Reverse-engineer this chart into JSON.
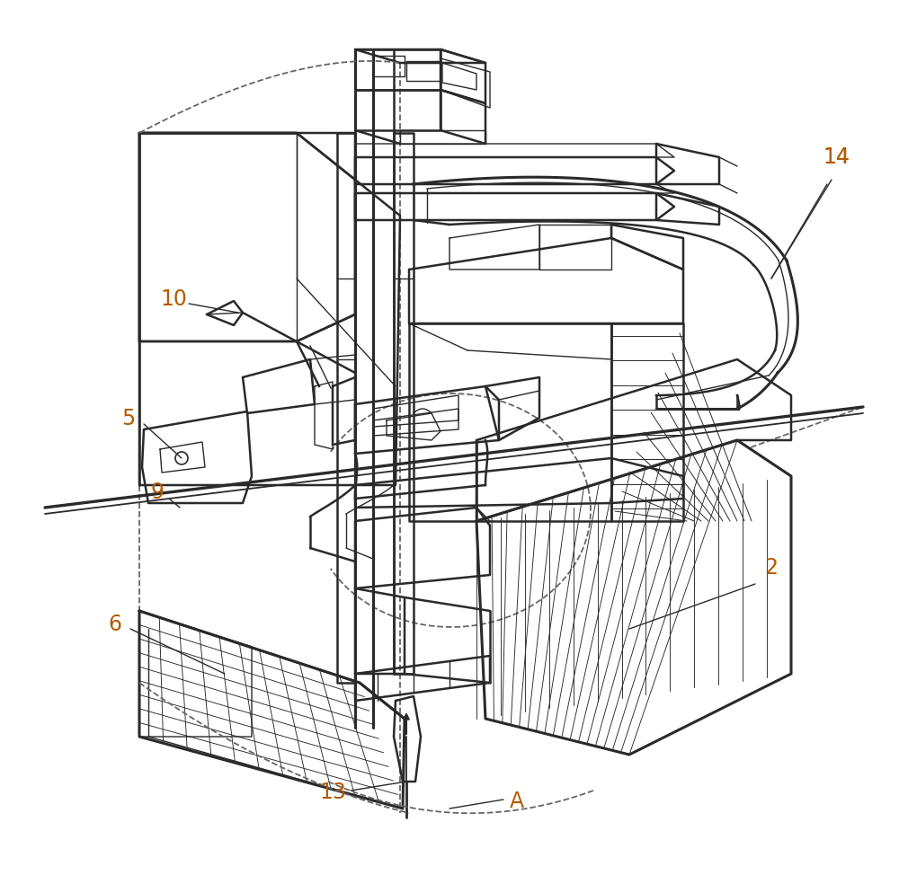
{
  "bg_color": "#ffffff",
  "line_color": "#2a2a2a",
  "label_color": "#b35a00",
  "dashed_color": "#666666",
  "lw_main": 1.8,
  "lw_thin": 1.0,
  "lw_thick": 2.2,
  "label_fs": 17
}
